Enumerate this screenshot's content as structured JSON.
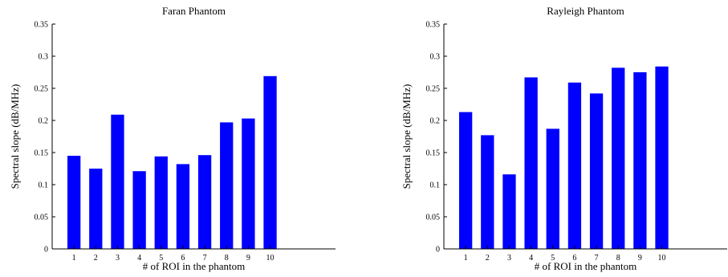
{
  "chart_data": [
    {
      "type": "bar",
      "title": "Faran Phantom",
      "xlabel": "# of ROI in the phantom",
      "ylabel": "Spectral slope (dB/MHz)",
      "categories": [
        "1",
        "2",
        "3",
        "4",
        "5",
        "6",
        "7",
        "8",
        "9",
        "10"
      ],
      "values": [
        0.145,
        0.125,
        0.209,
        0.121,
        0.144,
        0.132,
        0.146,
        0.197,
        0.203,
        0.269
      ],
      "ylim": [
        0,
        0.35
      ],
      "xlim": [
        0,
        13
      ],
      "yticks": [
        "0",
        "0.05",
        "0.1",
        "0.15",
        "0.2",
        "0.25",
        "0.3",
        "0.35"
      ],
      "bar_color": "#0000ff",
      "grid": false
    },
    {
      "type": "bar",
      "title": "Rayleigh Phantom",
      "xlabel": "# of ROI in the phantom",
      "ylabel": "Spectral slope (dB/MHz)",
      "categories": [
        "1",
        "2",
        "3",
        "4",
        "5",
        "6",
        "7",
        "8",
        "9",
        "10"
      ],
      "values": [
        0.213,
        0.177,
        0.116,
        0.267,
        0.187,
        0.259,
        0.242,
        0.282,
        0.275,
        0.284
      ],
      "ylim": [
        0,
        0.35
      ],
      "xlim": [
        0,
        13
      ],
      "yticks": [
        "0",
        "0.05",
        "0.1",
        "0.15",
        "0.2",
        "0.25",
        "0.3",
        "0.35"
      ],
      "bar_color": "#0000ff",
      "grid": false
    }
  ]
}
